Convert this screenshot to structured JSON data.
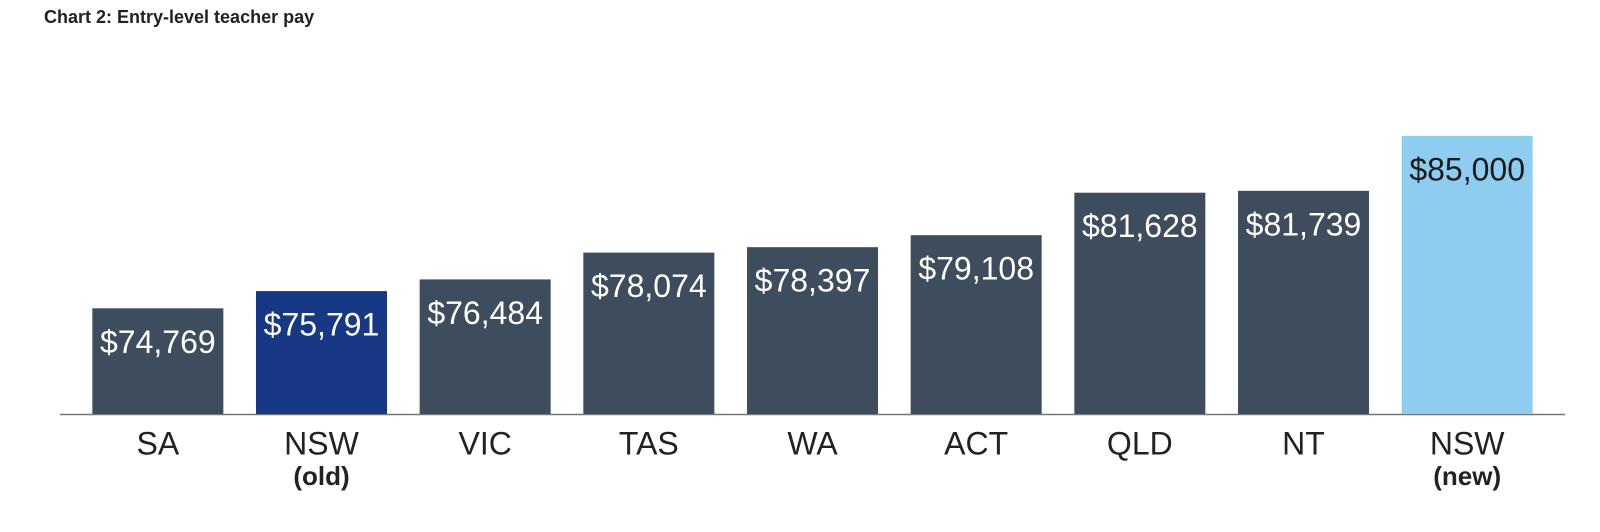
{
  "chart_data": {
    "type": "bar",
    "title": "Chart 2: Entry-level teacher pay",
    "categories": [
      "SA",
      "NSW",
      "VIC",
      "TAS",
      "WA",
      "ACT",
      "QLD",
      "NT",
      "NSW"
    ],
    "category_sublabels": [
      null,
      "(old)",
      null,
      null,
      null,
      null,
      null,
      null,
      "(new)"
    ],
    "values": [
      74769,
      75791,
      76484,
      78074,
      78397,
      79108,
      81628,
      81739,
      85000
    ],
    "value_labels": [
      "$74,769",
      "$75,791",
      "$76,484",
      "$78,074",
      "$78,397",
      "$79,108",
      "$81,628",
      "$81,739",
      "$85,000"
    ],
    "colors": [
      "#3e4d5e",
      "#163885",
      "#3e4d5e",
      "#3e4d5e",
      "#3e4d5e",
      "#3e4d5e",
      "#3e4d5e",
      "#3e4d5e",
      "#8ecdf0"
    ],
    "label_colors": [
      "#ffffff",
      "#ffffff",
      "#ffffff",
      "#ffffff",
      "#ffffff",
      "#ffffff",
      "#ffffff",
      "#ffffff",
      "#1a1a1a"
    ],
    "ylim": [
      68500,
      86000
    ]
  }
}
